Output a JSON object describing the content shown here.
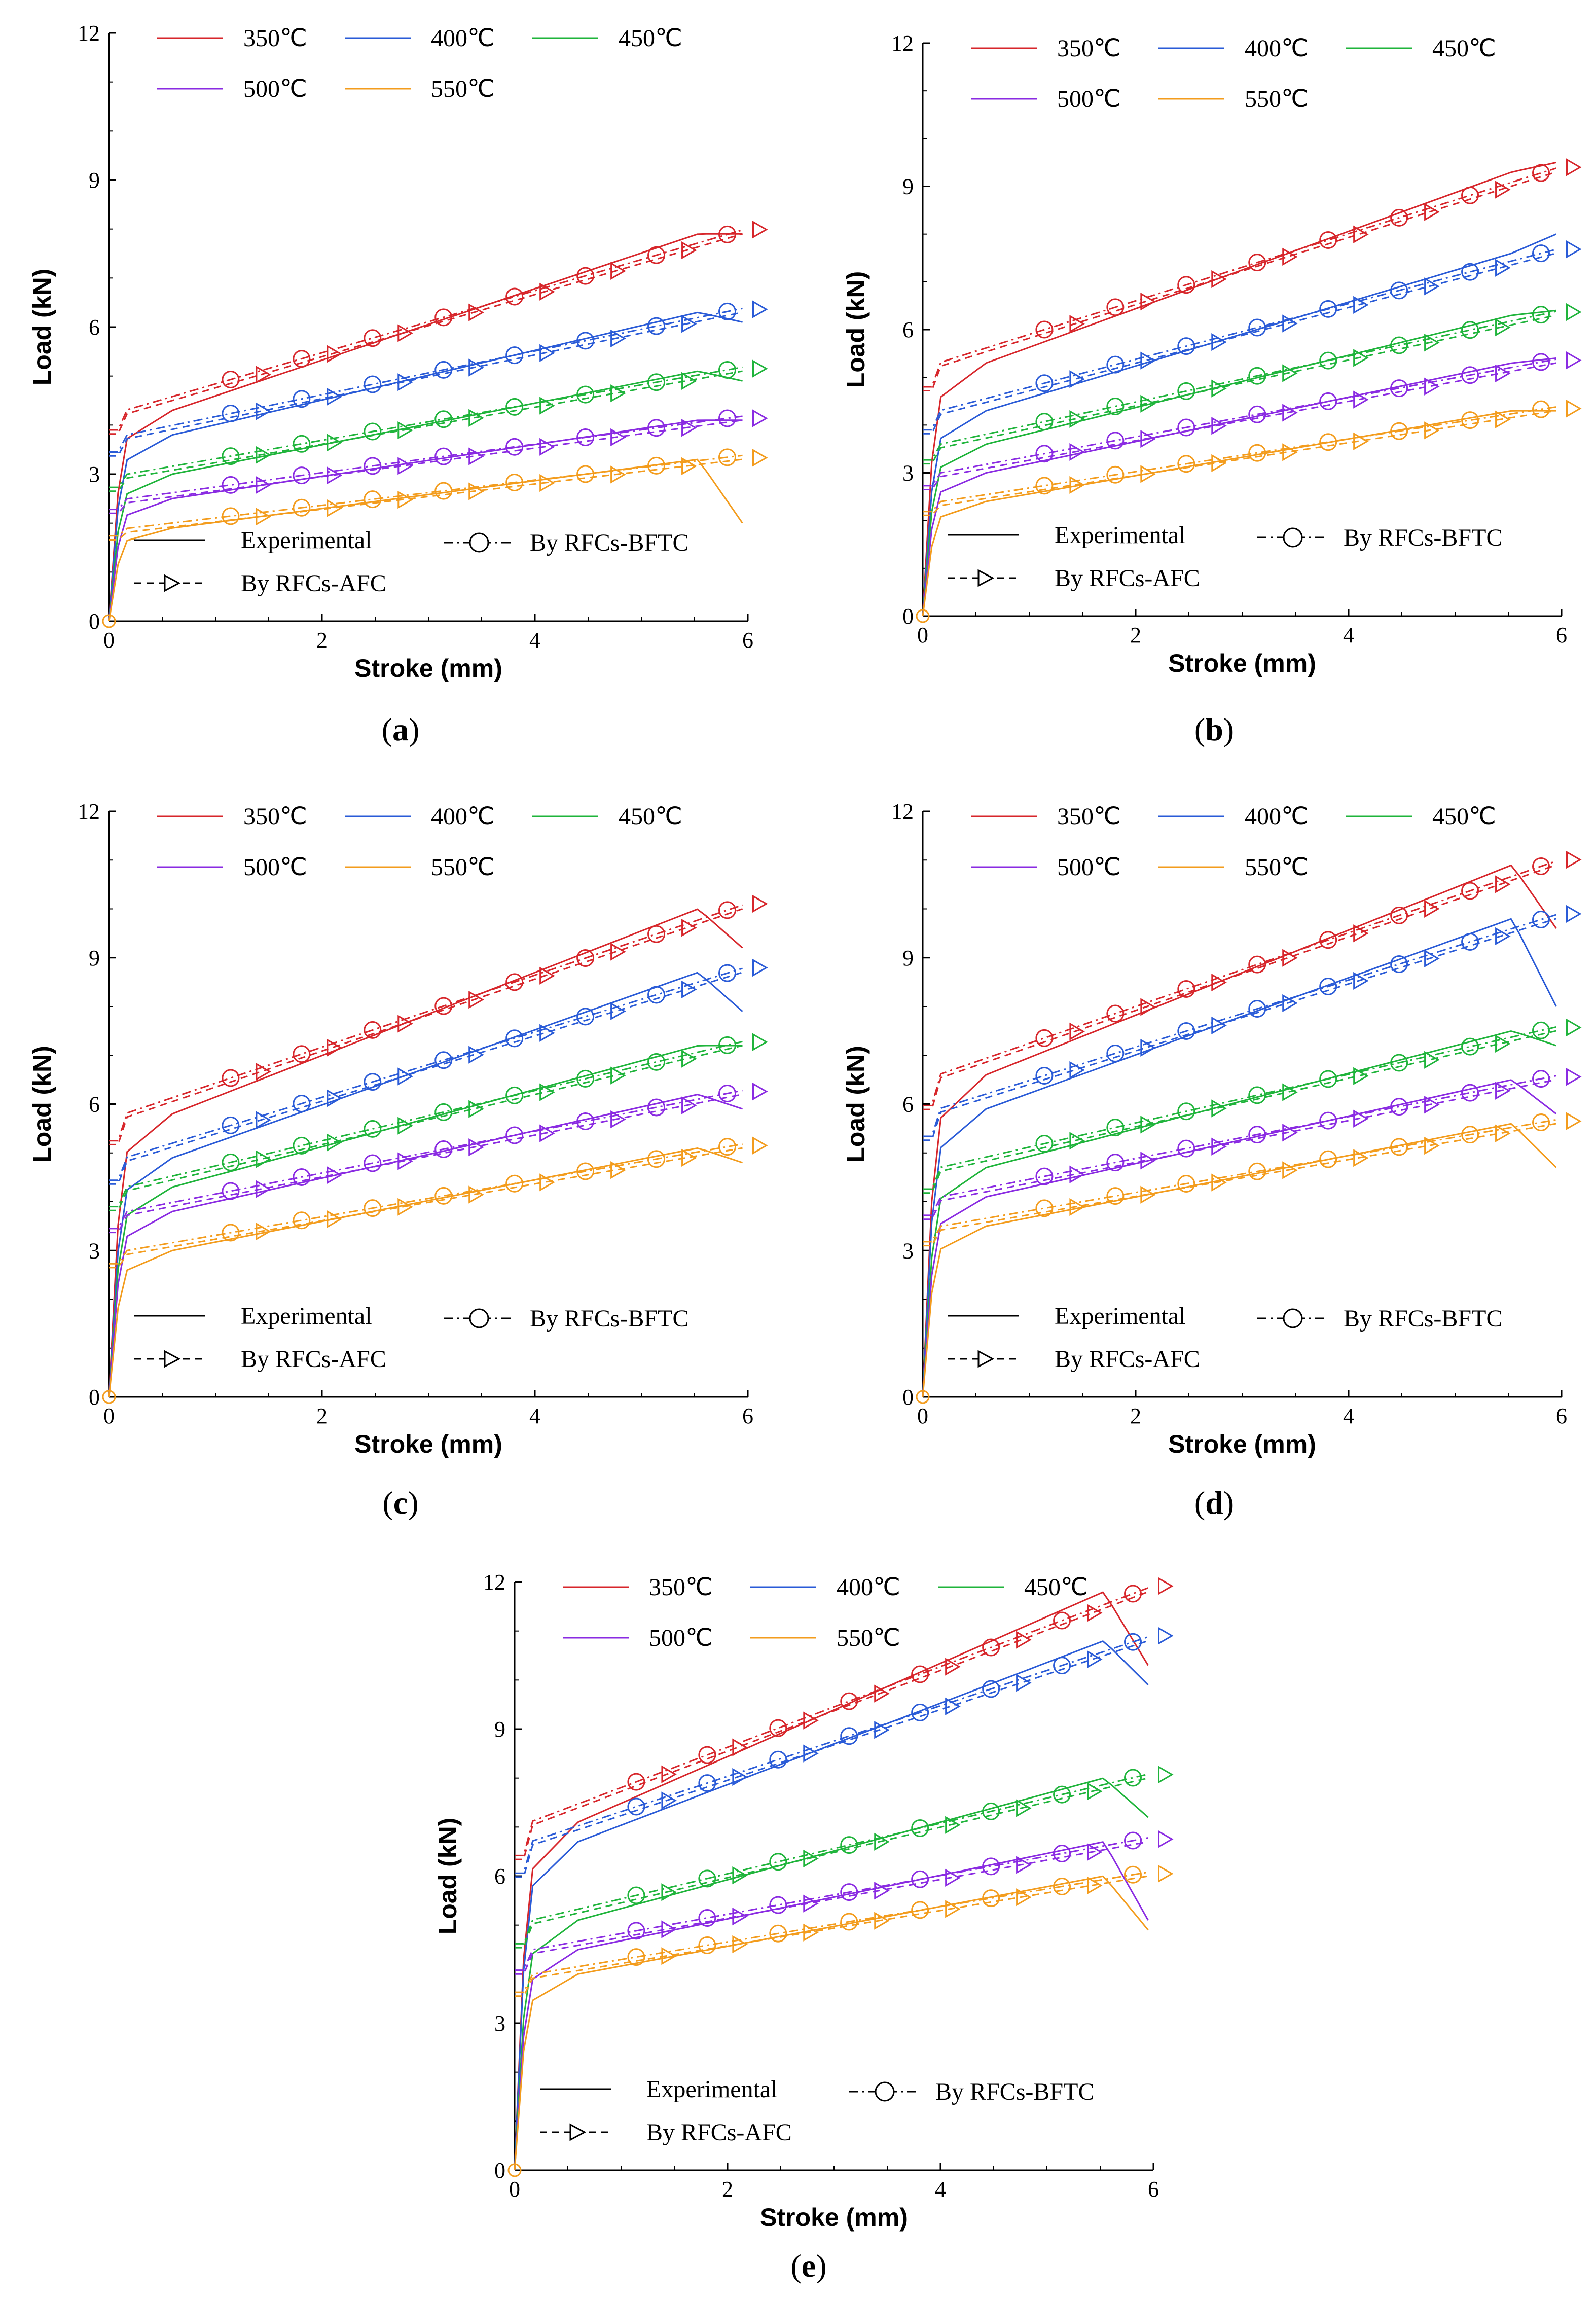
{
  "colors": {
    "350": "#d7262b",
    "400": "#2a5bd7",
    "450": "#1fb43b",
    "500": "#8a2be2",
    "550": "#f39c1d"
  },
  "legend": {
    "temps": [
      "350℃",
      "400℃",
      "450℃",
      "500℃",
      "550℃"
    ],
    "experimental": "Experimental",
    "bftc": "By RFCs-BFTC",
    "afc": "By RFCs-AFC"
  },
  "chart_data": [
    {
      "id": "a",
      "caption_letter": "a",
      "type": "line",
      "xlabel": "Stroke (mm)",
      "ylabel": "Load (kN)",
      "xlim": [
        0,
        6
      ],
      "ylim": [
        0,
        12
      ],
      "xticks": [
        "0",
        "2",
        "4",
        "6"
      ],
      "yticks": [
        "0",
        "3",
        "6",
        "9",
        "12"
      ],
      "series": [
        {
          "name": "350℃",
          "start": 4.3,
          "end": 7.9,
          "drop": 7.9
        },
        {
          "name": "400℃",
          "start": 3.8,
          "end": 6.3,
          "drop": 6.1
        },
        {
          "name": "450℃",
          "start": 3.0,
          "end": 5.1,
          "drop": 4.9
        },
        {
          "name": "500℃",
          "start": 2.5,
          "end": 4.1,
          "drop": 4.1
        },
        {
          "name": "550℃",
          "start": 1.9,
          "end": 3.3,
          "drop": 2.0
        }
      ]
    },
    {
      "id": "b",
      "caption_letter": "b",
      "type": "line",
      "xlabel": "Stroke (mm)",
      "ylabel": "Load (kN)",
      "xlim": [
        0,
        6
      ],
      "ylim": [
        0,
        12
      ],
      "xticks": [
        "0",
        "2",
        "4",
        "6"
      ],
      "yticks": [
        "0",
        "3",
        "6",
        "9",
        "12"
      ],
      "series": [
        {
          "name": "350℃",
          "start": 5.3,
          "end": 9.3,
          "drop": 9.5
        },
        {
          "name": "400℃",
          "start": 4.3,
          "end": 7.6,
          "drop": 8.0
        },
        {
          "name": "450℃",
          "start": 3.6,
          "end": 6.3,
          "drop": 6.4
        },
        {
          "name": "500℃",
          "start": 3.0,
          "end": 5.3,
          "drop": 5.4
        },
        {
          "name": "550℃",
          "start": 2.4,
          "end": 4.3,
          "drop": 4.3
        }
      ]
    },
    {
      "id": "c",
      "caption_letter": "c",
      "type": "line",
      "xlabel": "Stroke (mm)",
      "ylabel": "Load (kN)",
      "xlim": [
        0,
        6
      ],
      "ylim": [
        0,
        12
      ],
      "xticks": [
        "0",
        "2",
        "4",
        "6"
      ],
      "yticks": [
        "0",
        "3",
        "6",
        "9",
        "12"
      ],
      "series": [
        {
          "name": "350℃",
          "start": 5.8,
          "end": 10.0,
          "drop": 9.2
        },
        {
          "name": "400℃",
          "start": 4.9,
          "end": 8.7,
          "drop": 7.9
        },
        {
          "name": "450℃",
          "start": 4.3,
          "end": 7.2,
          "drop": 7.2
        },
        {
          "name": "500℃",
          "start": 3.8,
          "end": 6.2,
          "drop": 5.9
        },
        {
          "name": "550℃",
          "start": 3.0,
          "end": 5.1,
          "drop": 4.8
        }
      ]
    },
    {
      "id": "d",
      "caption_letter": "d",
      "type": "line",
      "xlabel": "Stroke (mm)",
      "ylabel": "Load (kN)",
      "xlim": [
        0,
        6
      ],
      "ylim": [
        0,
        12
      ],
      "xticks": [
        "0",
        "2",
        "4",
        "6"
      ],
      "yticks": [
        "0",
        "3",
        "6",
        "9",
        "12"
      ],
      "series": [
        {
          "name": "350℃",
          "start": 6.6,
          "end": 10.9,
          "drop": 9.6
        },
        {
          "name": "400℃",
          "start": 5.9,
          "end": 9.8,
          "drop": 8.0
        },
        {
          "name": "450℃",
          "start": 4.7,
          "end": 7.5,
          "drop": 7.2
        },
        {
          "name": "500℃",
          "start": 4.1,
          "end": 6.5,
          "drop": 5.8
        },
        {
          "name": "550℃",
          "start": 3.5,
          "end": 5.6,
          "drop": 4.7
        }
      ]
    },
    {
      "id": "e",
      "caption_letter": "e",
      "type": "line",
      "xlabel": "Stroke (mm)",
      "ylabel": "Load (kN)",
      "xlim": [
        0,
        6
      ],
      "ylim": [
        0,
        12
      ],
      "xticks": [
        "0",
        "2",
        "4",
        "6"
      ],
      "yticks": [
        "0",
        "3",
        "6",
        "9",
        "12"
      ],
      "series": [
        {
          "name": "350℃",
          "start": 7.1,
          "end": 11.8,
          "drop": 10.3
        },
        {
          "name": "400℃",
          "start": 6.7,
          "end": 10.8,
          "drop": 9.9
        },
        {
          "name": "450℃",
          "start": 5.1,
          "end": 8.0,
          "drop": 7.2
        },
        {
          "name": "500℃",
          "start": 4.5,
          "end": 6.7,
          "drop": 5.1
        },
        {
          "name": "550℃",
          "start": 4.0,
          "end": 6.0,
          "drop": 4.9
        }
      ]
    }
  ]
}
